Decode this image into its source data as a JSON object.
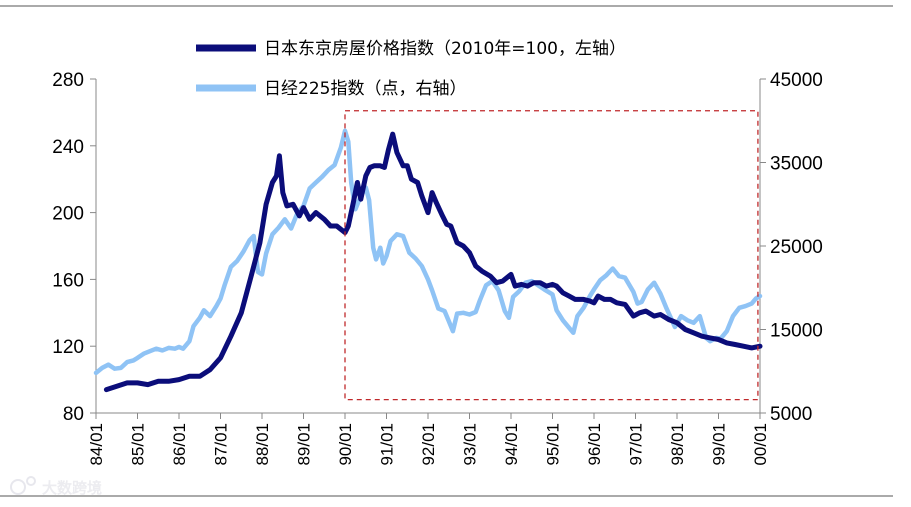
{
  "chart_data": {
    "type": "line",
    "title": "",
    "x_tick_labels": [
      "84/01",
      "85/01",
      "86/01",
      "87/01",
      "88/01",
      "89/01",
      "90/01",
      "91/01",
      "92/01",
      "93/01",
      "94/01",
      "95/01",
      "96/01",
      "97/01",
      "98/01",
      "99/01",
      "00/01"
    ],
    "left_axis": {
      "min": 80,
      "max": 280,
      "ticks": [
        "80",
        "120",
        "160",
        "200",
        "240",
        "280"
      ]
    },
    "right_axis": {
      "min": 5000,
      "max": 45000,
      "ticks": [
        "5000",
        "15000",
        "25000",
        "35000",
        "45000"
      ]
    },
    "x_range_years": [
      1984.0,
      2000.0
    ],
    "series": [
      {
        "name": "日本东京房屋价格指数（2010年=100，左轴）",
        "axis": "left",
        "color": "#0b0d7a",
        "points": [
          [
            1984.25,
            94
          ],
          [
            1984.5,
            96
          ],
          [
            1984.75,
            98
          ],
          [
            1985.0,
            98
          ],
          [
            1985.25,
            97
          ],
          [
            1985.5,
            99
          ],
          [
            1985.75,
            99
          ],
          [
            1986.0,
            100
          ],
          [
            1986.25,
            102
          ],
          [
            1986.5,
            102
          ],
          [
            1986.75,
            106
          ],
          [
            1987.0,
            113
          ],
          [
            1987.25,
            126
          ],
          [
            1987.5,
            140
          ],
          [
            1987.75,
            163
          ],
          [
            1987.95,
            182
          ],
          [
            1988.1,
            205
          ],
          [
            1988.25,
            218
          ],
          [
            1988.35,
            222
          ],
          [
            1988.42,
            234
          ],
          [
            1988.5,
            212
          ],
          [
            1988.6,
            204
          ],
          [
            1988.75,
            205
          ],
          [
            1988.9,
            198
          ],
          [
            1989.0,
            203
          ],
          [
            1989.15,
            196
          ],
          [
            1989.3,
            200
          ],
          [
            1989.5,
            196
          ],
          [
            1989.65,
            192
          ],
          [
            1989.8,
            192
          ],
          [
            1990.0,
            188
          ],
          [
            1990.08,
            192
          ],
          [
            1990.2,
            206
          ],
          [
            1990.3,
            218
          ],
          [
            1990.38,
            208
          ],
          [
            1990.5,
            222
          ],
          [
            1990.6,
            227
          ],
          [
            1990.7,
            228
          ],
          [
            1990.85,
            228
          ],
          [
            1990.95,
            227
          ],
          [
            1991.05,
            238
          ],
          [
            1991.15,
            247
          ],
          [
            1991.25,
            236
          ],
          [
            1991.4,
            228
          ],
          [
            1991.5,
            228
          ],
          [
            1991.6,
            220
          ],
          [
            1991.75,
            218
          ],
          [
            1991.85,
            210
          ],
          [
            1992.0,
            200
          ],
          [
            1992.1,
            212
          ],
          [
            1992.2,
            206
          ],
          [
            1992.35,
            198
          ],
          [
            1992.45,
            193
          ],
          [
            1992.55,
            192
          ],
          [
            1992.7,
            182
          ],
          [
            1992.85,
            180
          ],
          [
            1993.0,
            176
          ],
          [
            1993.15,
            168
          ],
          [
            1993.3,
            165
          ],
          [
            1993.5,
            162
          ],
          [
            1993.65,
            158
          ],
          [
            1993.8,
            159
          ],
          [
            1994.0,
            163
          ],
          [
            1994.1,
            156
          ],
          [
            1994.25,
            157
          ],
          [
            1994.4,
            156
          ],
          [
            1994.55,
            158
          ],
          [
            1994.7,
            158
          ],
          [
            1994.85,
            156
          ],
          [
            1995.0,
            157
          ],
          [
            1995.1,
            156
          ],
          [
            1995.25,
            152
          ],
          [
            1995.4,
            150
          ],
          [
            1995.55,
            148
          ],
          [
            1995.75,
            148
          ],
          [
            1995.9,
            147
          ],
          [
            1996.0,
            146
          ],
          [
            1996.1,
            150
          ],
          [
            1996.25,
            148
          ],
          [
            1996.4,
            148
          ],
          [
            1996.55,
            146
          ],
          [
            1996.75,
            145
          ],
          [
            1996.95,
            138
          ],
          [
            1997.1,
            140
          ],
          [
            1997.25,
            141
          ],
          [
            1997.45,
            138
          ],
          [
            1997.6,
            139
          ],
          [
            1997.8,
            136
          ],
          [
            1998.0,
            134
          ],
          [
            1998.2,
            130
          ],
          [
            1998.4,
            128
          ],
          [
            1998.6,
            126
          ],
          [
            1998.8,
            125
          ],
          [
            1999.0,
            124
          ],
          [
            1999.2,
            122
          ],
          [
            1999.4,
            121
          ],
          [
            1999.6,
            120
          ],
          [
            1999.8,
            119
          ],
          [
            2000.0,
            120
          ]
        ]
      },
      {
        "name": "日经225指数（点，右轴）",
        "axis": "right",
        "color": "#8fc3f5",
        "points": [
          [
            1984.0,
            9800
          ],
          [
            1984.15,
            10400
          ],
          [
            1984.3,
            10800
          ],
          [
            1984.45,
            10300
          ],
          [
            1984.6,
            10400
          ],
          [
            1984.75,
            11100
          ],
          [
            1984.9,
            11300
          ],
          [
            1985.0,
            11600
          ],
          [
            1985.15,
            12100
          ],
          [
            1985.3,
            12400
          ],
          [
            1985.45,
            12700
          ],
          [
            1985.6,
            12500
          ],
          [
            1985.75,
            12800
          ],
          [
            1985.9,
            12700
          ],
          [
            1986.0,
            12900
          ],
          [
            1986.1,
            12700
          ],
          [
            1986.25,
            13600
          ],
          [
            1986.35,
            15400
          ],
          [
            1986.5,
            16400
          ],
          [
            1986.6,
            17300
          ],
          [
            1986.75,
            16600
          ],
          [
            1986.9,
            17800
          ],
          [
            1987.0,
            18700
          ],
          [
            1987.1,
            20300
          ],
          [
            1987.25,
            22500
          ],
          [
            1987.4,
            23200
          ],
          [
            1987.55,
            24300
          ],
          [
            1987.7,
            25700
          ],
          [
            1987.8,
            26200
          ],
          [
            1987.9,
            21900
          ],
          [
            1988.0,
            21600
          ],
          [
            1988.1,
            24100
          ],
          [
            1988.25,
            26400
          ],
          [
            1988.4,
            27200
          ],
          [
            1988.55,
            28200
          ],
          [
            1988.7,
            27100
          ],
          [
            1988.85,
            28900
          ],
          [
            1989.0,
            29800
          ],
          [
            1989.15,
            31900
          ],
          [
            1989.3,
            32600
          ],
          [
            1989.45,
            33300
          ],
          [
            1989.6,
            34100
          ],
          [
            1989.75,
            34700
          ],
          [
            1989.9,
            36800
          ],
          [
            1990.0,
            38800
          ],
          [
            1990.08,
            37500
          ],
          [
            1990.15,
            32600
          ],
          [
            1990.25,
            29400
          ],
          [
            1990.38,
            31000
          ],
          [
            1990.5,
            32000
          ],
          [
            1990.58,
            30500
          ],
          [
            1990.68,
            24800
          ],
          [
            1990.75,
            23400
          ],
          [
            1990.85,
            24800
          ],
          [
            1990.92,
            22900
          ],
          [
            1991.0,
            23800
          ],
          [
            1991.1,
            25600
          ],
          [
            1991.25,
            26400
          ],
          [
            1991.4,
            26200
          ],
          [
            1991.55,
            24200
          ],
          [
            1991.7,
            23500
          ],
          [
            1991.85,
            22600
          ],
          [
            1992.0,
            21000
          ],
          [
            1992.1,
            19700
          ],
          [
            1992.25,
            17500
          ],
          [
            1992.4,
            17200
          ],
          [
            1992.5,
            16000
          ],
          [
            1992.6,
            14800
          ],
          [
            1992.7,
            16900
          ],
          [
            1992.85,
            17000
          ],
          [
            1993.0,
            16800
          ],
          [
            1993.15,
            17100
          ],
          [
            1993.25,
            18500
          ],
          [
            1993.4,
            20300
          ],
          [
            1993.55,
            20800
          ],
          [
            1993.7,
            19700
          ],
          [
            1993.85,
            17200
          ],
          [
            1993.95,
            16400
          ],
          [
            1994.05,
            18900
          ],
          [
            1994.2,
            19600
          ],
          [
            1994.35,
            20600
          ],
          [
            1994.5,
            20800
          ],
          [
            1994.65,
            20300
          ],
          [
            1994.8,
            19800
          ],
          [
            1995.0,
            19200
          ],
          [
            1995.1,
            17300
          ],
          [
            1995.25,
            16100
          ],
          [
            1995.4,
            15200
          ],
          [
            1995.5,
            14600
          ],
          [
            1995.6,
            16600
          ],
          [
            1995.75,
            17600
          ],
          [
            1995.9,
            19000
          ],
          [
            1996.0,
            19800
          ],
          [
            1996.15,
            20900
          ],
          [
            1996.3,
            21500
          ],
          [
            1996.45,
            22300
          ],
          [
            1996.6,
            21400
          ],
          [
            1996.75,
            21200
          ],
          [
            1996.95,
            19500
          ],
          [
            1997.05,
            18100
          ],
          [
            1997.15,
            18300
          ],
          [
            1997.3,
            19800
          ],
          [
            1997.45,
            20600
          ],
          [
            1997.6,
            19300
          ],
          [
            1997.75,
            17500
          ],
          [
            1997.85,
            16400
          ],
          [
            1997.95,
            15300
          ],
          [
            1998.1,
            16600
          ],
          [
            1998.25,
            16100
          ],
          [
            1998.4,
            15800
          ],
          [
            1998.55,
            16600
          ],
          [
            1998.7,
            14000
          ],
          [
            1998.8,
            13600
          ],
          [
            1998.95,
            14000
          ],
          [
            1999.05,
            13900
          ],
          [
            1999.2,
            14800
          ],
          [
            1999.35,
            16600
          ],
          [
            1999.5,
            17600
          ],
          [
            1999.65,
            17800
          ],
          [
            1999.8,
            18100
          ],
          [
            1999.9,
            18700
          ],
          [
            2000.0,
            19000
          ]
        ]
      }
    ],
    "annotation": {
      "type": "dashed-rectangle",
      "color": "#c0292b",
      "x_start": 1990.0,
      "x_end": 1999.95,
      "y_bottom_left": 88,
      "y_top_left": 261
    }
  },
  "watermark": {
    "text": "大数跨境"
  }
}
